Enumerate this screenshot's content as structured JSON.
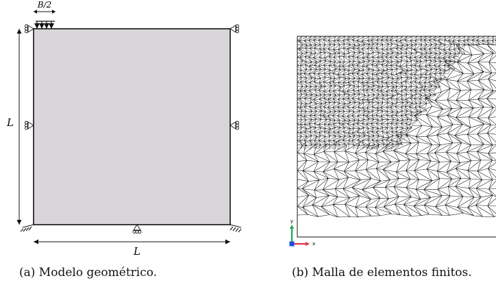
{
  "panel_a": {
    "caption": "(a) Modelo geométrico.",
    "load_label": "B/2",
    "height_label": "L",
    "width_label": "L",
    "plate_color": "#d9d5d8"
  },
  "panel_b": {
    "caption": "(b) Malla de elementos finitos.",
    "axis_y_label": "y",
    "axis_x_label": "x",
    "axis_y_color": "#1aa84a",
    "axis_x_color": "#e0334b",
    "mesh_color": "#111111"
  }
}
